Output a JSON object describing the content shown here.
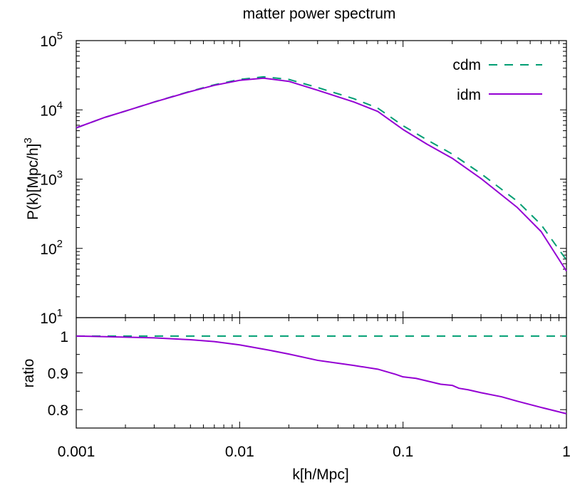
{
  "chart_data": [
    {
      "type": "line",
      "title": "matter power spectrum",
      "xlabel": "",
      "ylabel": "P(k)[Mpc/h]",
      "ylabel_superscript": "3",
      "xscale": "log",
      "yscale": "log",
      "xlim": [
        0.001,
        1
      ],
      "ylim": [
        10,
        100000
      ],
      "grid": false,
      "legend_position": "top-right",
      "y_ticks": [
        {
          "value": 10,
          "base": "10",
          "exp": "1"
        },
        {
          "value": 100,
          "base": "10",
          "exp": "2"
        },
        {
          "value": 1000,
          "base": "10",
          "exp": "3"
        },
        {
          "value": 10000,
          "base": "10",
          "exp": "4"
        },
        {
          "value": 100000,
          "base": "10",
          "exp": "5"
        }
      ],
      "series": [
        {
          "name": "cdm",
          "color": "#009e73",
          "style": "dashed",
          "x": [
            0.001,
            0.0015,
            0.002,
            0.003,
            0.005,
            0.007,
            0.01,
            0.014,
            0.02,
            0.03,
            0.05,
            0.07,
            0.1,
            0.14,
            0.2,
            0.3,
            0.5,
            0.7,
            1.0
          ],
          "y": [
            5500,
            7800,
            9600,
            13000,
            18600,
            23000,
            27500,
            30000,
            27500,
            21000,
            14500,
            10600,
            5900,
            3700,
            2300,
            1200,
            480,
            220,
            68
          ]
        },
        {
          "name": "idm",
          "color": "#9400d3",
          "style": "solid",
          "x": [
            0.001,
            0.0015,
            0.002,
            0.003,
            0.005,
            0.007,
            0.01,
            0.014,
            0.02,
            0.03,
            0.05,
            0.07,
            0.1,
            0.14,
            0.2,
            0.3,
            0.5,
            0.7,
            1.0
          ],
          "y": [
            5500,
            7800,
            9600,
            12950,
            18400,
            22600,
            26700,
            28700,
            25800,
            19200,
            13000,
            9500,
            5200,
            3200,
            2000,
            1020,
            390,
            175,
            47
          ]
        }
      ]
    },
    {
      "type": "line",
      "title": "",
      "xlabel": "k[h/Mpc]",
      "ylabel": "ratio",
      "xscale": "log",
      "xlim": [
        0.001,
        1
      ],
      "ylim": [
        0.75,
        1.05
      ],
      "grid": false,
      "x_ticks": [
        "0.001",
        "0.01",
        "0.1",
        "1"
      ],
      "y_ticks": [
        "0.8",
        "0.9",
        "1"
      ],
      "series": [
        {
          "name": "cdm",
          "color": "#009e73",
          "style": "dashed",
          "x": [
            0.001,
            1.0
          ],
          "y": [
            1.0,
            1.0
          ]
        },
        {
          "name": "idm",
          "color": "#9400d3",
          "style": "solid",
          "x": [
            0.001,
            0.002,
            0.003,
            0.005,
            0.007,
            0.01,
            0.015,
            0.02,
            0.03,
            0.05,
            0.07,
            0.09,
            0.1,
            0.12,
            0.14,
            0.17,
            0.2,
            0.22,
            0.25,
            0.3,
            0.4,
            0.5,
            0.7,
            1.0
          ],
          "y": [
            1.0,
            0.997,
            0.995,
            0.99,
            0.985,
            0.976,
            0.962,
            0.951,
            0.934,
            0.92,
            0.91,
            0.896,
            0.889,
            0.885,
            0.878,
            0.869,
            0.866,
            0.858,
            0.854,
            0.846,
            0.835,
            0.823,
            0.806,
            0.789
          ]
        }
      ]
    }
  ]
}
